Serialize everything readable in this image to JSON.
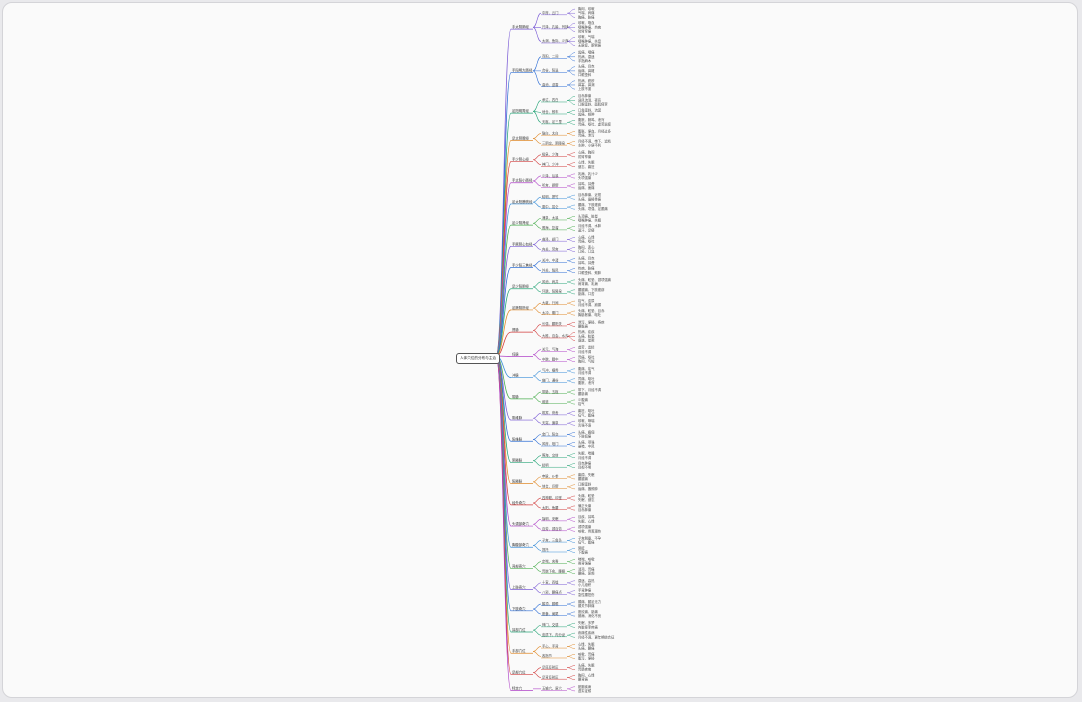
{
  "root": {
    "label": "人体穴位的分布与主治"
  },
  "palette": [
    "#7b5cd6",
    "#2f6fd6",
    "#2aa67a",
    "#e08a2a",
    "#d23c3c",
    "#b043c8",
    "#3a8fd9",
    "#4caf50"
  ],
  "branches": [
    {
      "label": "手太阴肺经",
      "children": [
        {
          "label": "中府、云门",
          "leaves": [
            "胸闷、咳嗽",
            "气喘、肩痛",
            "胸痛、胁痛"
          ]
        },
        {
          "label": "尺泽、孔最、列缺",
          "leaves": [
            "咳嗽、咯血",
            "咽喉肿痛、热病",
            "肘臂挛痛"
          ]
        },
        {
          "label": "太渊、鱼际、少商",
          "leaves": [
            "咳嗽、气喘",
            "咽喉肿痛、失音",
            "无脉症、腕臂痛"
          ]
        }
      ]
    },
    {
      "label": "手阳明大肠经",
      "children": [
        {
          "label": "商阳、二间",
          "leaves": [
            "齿痛、咽痛",
            "热病、昏迷",
            "手指麻木"
          ]
        },
        {
          "label": "合谷、阳溪",
          "leaves": [
            "头痛、目赤",
            "齿痛、鼻衄",
            "口眼歪斜"
          ]
        },
        {
          "label": "曲池、迎香",
          "leaves": [
            "热病、瘾疹",
            "鼻塞、鼻渊",
            "上肢不遂"
          ]
        }
      ]
    },
    {
      "label": "足阳明胃经",
      "children": [
        {
          "label": "承泣、四白",
          "leaves": [
            "目赤肿痛",
            "迎风流泪、夜盲",
            "口眼歪斜、面肌痉挛"
          ]
        },
        {
          "label": "地仓、颊车",
          "leaves": [
            "口角歪斜、流涎",
            "齿痛、颊肿"
          ]
        },
        {
          "label": "天枢、足三里",
          "leaves": [
            "腹胀、肠鸣、泄泻",
            "胃痛、呕吐、虚劳羸瘦"
          ]
        }
      ]
    },
    {
      "label": "足太阴脾经",
      "children": [
        {
          "label": "隐白、太白",
          "leaves": [
            "腹胀、便血、月经过多",
            "胃痛、泄泻"
          ]
        },
        {
          "label": "三阴交、阴陵泉",
          "leaves": [
            "月经不调、带下、遗精",
            "水肿、小便不利"
          ]
        }
      ]
    },
    {
      "label": "手少阴心经",
      "children": [
        {
          "label": "极泉、少海",
          "leaves": [
            "心痛、胸闷",
            "肘臂挛痛"
          ]
        },
        {
          "label": "神门、少冲",
          "leaves": [
            "心悸、失眠",
            "健忘、癫狂"
          ]
        }
      ]
    },
    {
      "label": "手太阳小肠经",
      "children": [
        {
          "label": "少泽、后溪",
          "leaves": [
            "乳痈、乳汁少",
            "头项强痛"
          ]
        },
        {
          "label": "听宫、颧髎",
          "leaves": [
            "耳鸣、耳聋",
            "齿痛、面痛"
          ]
        }
      ]
    },
    {
      "label": "足太阳膀胱经",
      "children": [
        {
          "label": "睛明、攒竹",
          "leaves": [
            "目赤肿痛、近视",
            "头痛、眉棱骨痛"
          ]
        },
        {
          "label": "委中、昆仑",
          "leaves": [
            "腰痛、下肢痿痹",
            "头痛、项强、足跟痛"
          ]
        }
      ]
    },
    {
      "label": "足少阴肾经",
      "children": [
        {
          "label": "涌泉、太溪",
          "leaves": [
            "头顶痛、眩晕",
            "咽喉肿痛、失眠"
          ]
        },
        {
          "label": "照海、复溜",
          "leaves": [
            "月经不调、水肿",
            "盗汗、足痿"
          ]
        }
      ]
    },
    {
      "label": "手厥阴心包经",
      "children": [
        {
          "label": "曲泽、郄门",
          "leaves": [
            "心痛、心悸",
            "胃痛、呕吐"
          ]
        },
        {
          "label": "内关、劳宫",
          "leaves": [
            "胸闷、恶心",
            "口疮、口臭"
          ]
        }
      ]
    },
    {
      "label": "手少阳三焦经",
      "children": [
        {
          "label": "关冲、中渚",
          "leaves": [
            "头痛、目赤",
            "耳鸣、耳聋"
          ]
        },
        {
          "label": "外关、翳风",
          "leaves": [
            "热病、胁痛",
            "口眼歪斜、颊肿"
          ]
        }
      ]
    },
    {
      "label": "足少阳胆经",
      "children": [
        {
          "label": "风池、肩井",
          "leaves": [
            "头痛、眩晕、颈项强痛",
            "肩背痛、乳痈"
          ]
        },
        {
          "label": "环跳、阳陵泉",
          "leaves": [
            "腰腿痛、下肢痿痹",
            "胁痛、口苦"
          ]
        }
      ]
    },
    {
      "label": "足厥阴肝经",
      "children": [
        {
          "label": "大敦、行间",
          "leaves": [
            "疝气、遗尿",
            "月经不调、崩漏"
          ]
        },
        {
          "label": "太冲、期门",
          "leaves": [
            "头痛、眩晕、目赤",
            "胸胁胀痛、呕吐"
          ]
        }
      ]
    },
    {
      "label": "督脉",
      "children": [
        {
          "label": "长强、腰阳关",
          "leaves": [
            "泄泻、便秘、痔疾",
            "腰骶痛"
          ]
        },
        {
          "label": "大椎、百会、水沟",
          "leaves": [
            "热病、疟疾",
            "头痛、眩晕",
            "昏迷、晕厥"
          ]
        }
      ]
    },
    {
      "label": "任脉",
      "children": [
        {
          "label": "关元、气海",
          "leaves": [
            "虚劳、遗精",
            "月经不调"
          ]
        },
        {
          "label": "中脘、膻中",
          "leaves": [
            "胃痛、呕吐",
            "胸闷、气短"
          ]
        }
      ]
    },
    {
      "label": "冲脉",
      "children": [
        {
          "label": "气冲、横骨",
          "leaves": [
            "腹痛、疝气",
            "月经不调"
          ]
        },
        {
          "label": "幽门、通谷",
          "leaves": [
            "胃痛、呕吐",
            "腹胀、泄泻"
          ]
        }
      ]
    },
    {
      "label": "带脉",
      "children": [
        {
          "label": "带脉、五枢",
          "leaves": [
            "带下、月经不调",
            "腰胁痛"
          ]
        },
        {
          "label": "维道",
          "leaves": [
            "少腹痛",
            "疝气"
          ]
        }
      ]
    },
    {
      "label": "阴维脉",
      "children": [
        {
          "label": "筑宾、府舍",
          "leaves": [
            "癫狂、呕吐",
            "疝气、腹痛"
          ]
        },
        {
          "label": "天突、廉泉",
          "leaves": [
            "咳嗽、哮喘",
            "舌强不语"
          ]
        }
      ]
    },
    {
      "label": "阳维脉",
      "children": [
        {
          "label": "金门、阳交",
          "leaves": [
            "头痛、癫痫",
            "下肢痹痛"
          ]
        },
        {
          "label": "风府、哑门",
          "leaves": [
            "头痛、项强",
            "暴喑、中风"
          ]
        }
      ]
    },
    {
      "label": "阴跷脉",
      "children": [
        {
          "label": "照海、交信",
          "leaves": [
            "失眠、嗜睡",
            "月经不调"
          ]
        },
        {
          "label": "睛明",
          "leaves": [
            "目赤肿痛",
            "目视不明"
          ]
        }
      ]
    },
    {
      "label": "阳跷脉",
      "children": [
        {
          "label": "申脉、仆参",
          "leaves": [
            "癫痫、失眠",
            "腰腿痛"
          ]
        },
        {
          "label": "地仓、巨髎",
          "leaves": [
            "口眼歪斜",
            "齿痛、唇颊肿"
          ]
        }
      ]
    },
    {
      "label": "经外奇穴",
      "children": [
        {
          "label": "四神聪、印堂",
          "leaves": [
            "头痛、眩晕",
            "失眠、健忘"
          ]
        },
        {
          "label": "太阳、鱼腰",
          "leaves": [
            "偏正头痛",
            "目赤肿痛"
          ]
        }
      ]
    },
    {
      "label": "头颈部奇穴",
      "children": [
        {
          "label": "翳明、安眠",
          "leaves": [
            "目疾、耳鸣",
            "失眠、心悸"
          ]
        },
        {
          "label": "百劳、颈百劳",
          "leaves": [
            "颈项强痛",
            "咳嗽、骨蒸潮热"
          ]
        }
      ]
    },
    {
      "label": "胸腹部奇穴",
      "children": [
        {
          "label": "子宫、三角灸",
          "leaves": [
            "子宫脱垂、不孕",
            "疝气、腹痛"
          ]
        },
        {
          "label": "提托",
          "leaves": [
            "阴挺",
            "下腹痛"
          ]
        }
      ]
    },
    {
      "label": "背部奇穴",
      "children": [
        {
          "label": "定喘、夹脊",
          "leaves": [
            "哮喘、咳嗽",
            "脊背强痛"
          ]
        },
        {
          "label": "胃脘下俞、腰眼",
          "leaves": [
            "消渴、胃痛",
            "腰痛、尿频"
          ]
        }
      ]
    },
    {
      "label": "上肢奇穴",
      "children": [
        {
          "label": "十宣、四缝",
          "leaves": [
            "昏迷、高热",
            "小儿疳积"
          ]
        },
        {
          "label": "八邪、腰痛点",
          "leaves": [
            "手背肿痛",
            "急性腰扭伤"
          ]
        }
      ]
    },
    {
      "label": "下肢奇穴",
      "children": [
        {
          "label": "鹤顶、膝眼",
          "leaves": [
            "膝痛、腿足无力",
            "膝关节肿痛"
          ]
        },
        {
          "label": "胆囊、阑尾",
          "leaves": [
            "胆绞痛、胁痛",
            "肠痈、消化不良"
          ]
        }
      ]
    },
    {
      "label": "耳部穴位",
      "children": [
        {
          "label": "神门、交感",
          "leaves": [
            "失眠、多梦",
            "内脏痉挛疼痛"
          ]
        },
        {
          "label": "皮质下、内分泌",
          "leaves": [
            "疼痛性疾病",
            "月经不调、更年期综合征"
          ]
        }
      ]
    },
    {
      "label": "手部穴位",
      "children": [
        {
          "label": "手心、手背",
          "leaves": [
            "心悸、失眠",
            "头痛、腰痛"
          ]
        },
        {
          "label": "各指节",
          "leaves": [
            "咳嗽、胃痛",
            "腹泻、便秘"
          ]
        }
      ]
    },
    {
      "label": "足部穴位",
      "children": [
        {
          "label": "足底反射区",
          "leaves": [
            "头痛、失眠",
            "胃肠疾病"
          ]
        },
        {
          "label": "足背反射区",
          "leaves": [
            "胸闷、心悸",
            "腰背痛"
          ]
        }
      ]
    },
    {
      "label": "特定穴",
      "children": [
        {
          "label": "五输穴、原穴",
          "leaves": [
            "脏腑疾病",
            "虚实证候"
          ]
        }
      ]
    }
  ]
}
